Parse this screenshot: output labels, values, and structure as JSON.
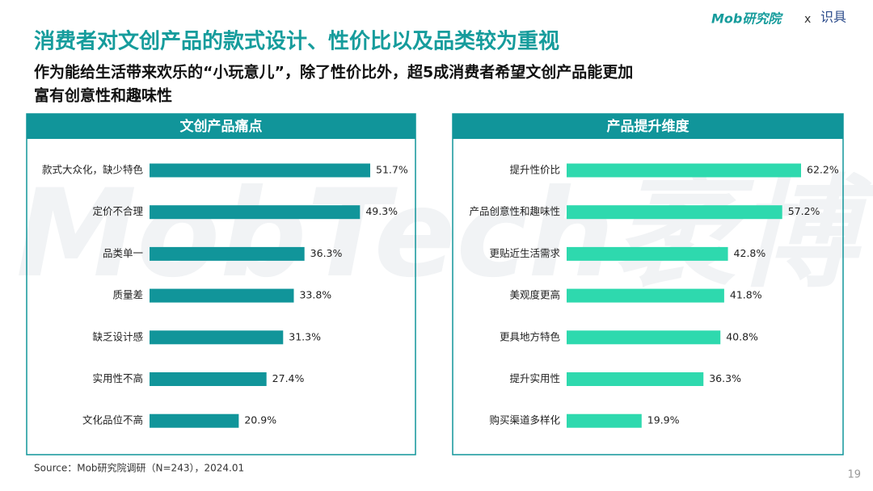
{
  "header": {
    "title": "消费者对文创产品的款式设计、性价比以及品类较为重视",
    "subtitle_lines": [
      "作为能给生活带来欢乐的“小玩意儿”，除了性价比外，超5成消费者希望文创产品能更加",
      "富有创意性和趣味性"
    ],
    "logo_left": "Mob研究院",
    "logo_sep": "x",
    "logo_right": "识具"
  },
  "watermark": "MobTech袤博",
  "chart_data": [
    {
      "type": "bar",
      "orientation": "horizontal",
      "title": "文创产品痛点",
      "color": "#11959a",
      "categories": [
        "款式大众化，缺少特色",
        "定价不合理",
        "品类单一",
        "质量差",
        "缺乏设计感",
        "实用性不高",
        "文化品位不高"
      ],
      "values": [
        51.7,
        49.3,
        36.3,
        33.8,
        31.3,
        27.4,
        20.9
      ],
      "value_labels": [
        "51.7%",
        "49.3%",
        "36.3%",
        "33.8%",
        "31.3%",
        "27.4%",
        "20.9%"
      ]
    },
    {
      "type": "bar",
      "orientation": "horizontal",
      "title": "产品提升维度",
      "color": "#2ed9ae",
      "categories": [
        "提升性价比",
        "产品创意性和趣味性",
        "更贴近生活需求",
        "美观度更高",
        "更具地方特色",
        "提升实用性",
        "购买渠道多样化"
      ],
      "values": [
        62.2,
        57.2,
        42.8,
        41.8,
        40.8,
        36.3,
        19.9
      ],
      "value_labels": [
        "62.2%",
        "57.2%",
        "42.8%",
        "41.8%",
        "40.8%",
        "36.3%",
        "19.9%"
      ]
    }
  ],
  "footer": {
    "source": "Source：Mob研究院调研（N=243），2024.01",
    "page": "19"
  }
}
